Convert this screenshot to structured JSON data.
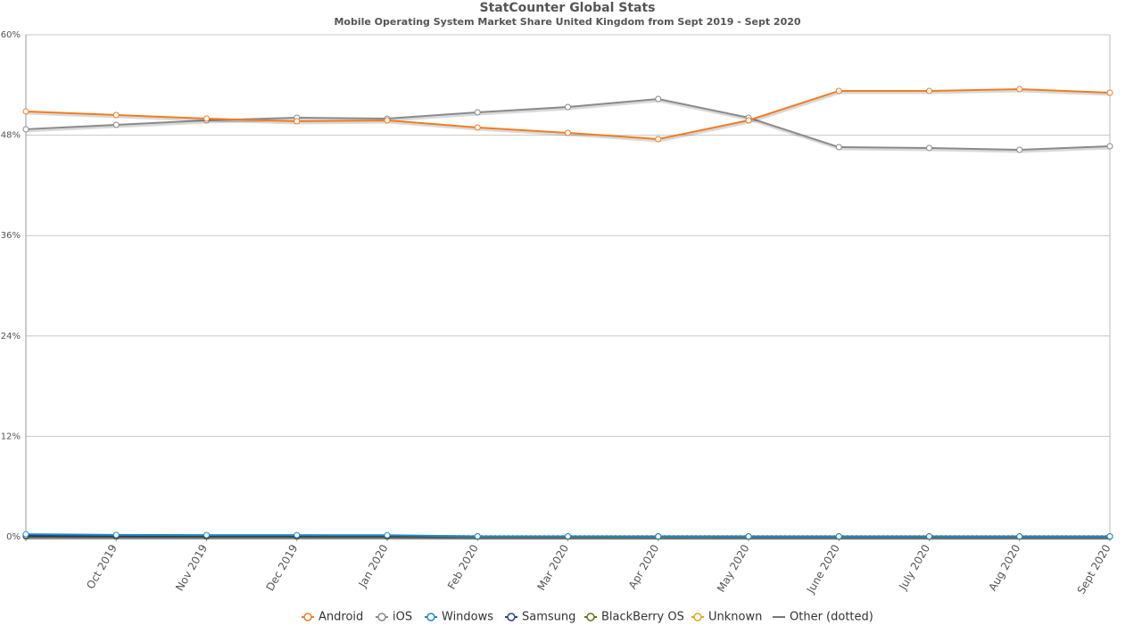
{
  "chart_data": {
    "type": "line",
    "title": "StatCounter Global Stats",
    "subtitle": "Mobile Operating System Market Share United Kingdom from Sept 2019 - Sept 2020",
    "categories": [
      null,
      "Oct 2019",
      "Nov 2019",
      "Dec 2019",
      "Jan 2020",
      "Feb 2020",
      "Mar 2020",
      "Apr 2020",
      "May 2020",
      "June 2020",
      "July 2020",
      "Aug 2020",
      "Sept 2020"
    ],
    "ylim": [
      0,
      60
    ],
    "yticks": [
      {
        "value": 0,
        "label": "0%"
      },
      {
        "value": 12,
        "label": "12%"
      },
      {
        "value": 24,
        "label": "24%"
      },
      {
        "value": 36,
        "label": "36%"
      },
      {
        "value": 48,
        "label": "48%"
      },
      {
        "value": 60,
        "label": "60%"
      }
    ],
    "grid": true,
    "legend": "bottom",
    "series": [
      {
        "name": "Android",
        "color": "#f47b20",
        "values": [
          50.84,
          50.41,
          49.98,
          49.66,
          49.77,
          48.92,
          48.28,
          47.53,
          49.77,
          53.29,
          53.29,
          53.5,
          53.07
        ]
      },
      {
        "name": "iOS",
        "color": "#8a8a8a",
        "values": [
          48.71,
          49.24,
          49.77,
          50.09,
          49.98,
          50.73,
          51.37,
          52.33,
          50.09,
          46.57,
          46.47,
          46.25,
          46.68
        ]
      },
      {
        "name": "Windows",
        "color": "#1f88c9",
        "values": [
          0.3,
          0.22,
          0.2,
          0.2,
          0.18,
          0.05,
          0.05,
          0.04,
          0.04,
          0.04,
          0.04,
          0.04,
          0.04
        ]
      },
      {
        "name": "Samsung",
        "color": "#2c3f8f",
        "values": [
          0.12,
          0.1,
          0.1,
          0.1,
          0.1,
          0.05,
          0.05,
          0.05,
          0.04,
          0.04,
          0.04,
          0.04,
          0.04
        ]
      },
      {
        "name": "BlackBerry OS",
        "color": "#5a7a12",
        "values": [
          0.02,
          0.02,
          0.02,
          0.02,
          0.02,
          0.01,
          0.01,
          0.01,
          0.01,
          0.01,
          0.01,
          0.01,
          0.01
        ]
      },
      {
        "name": "Unknown",
        "color": "#e0a818",
        "values": [
          0.05,
          0.05,
          0.05,
          0.05,
          0.05,
          0.05,
          0.05,
          0.05,
          0.05,
          0.05,
          0.05,
          0.05,
          0.05
        ]
      },
      {
        "name": "Other (dotted)",
        "color": "#777777",
        "style": "dotted",
        "values": [
          0.08,
          0.08,
          0.08,
          0.08,
          0.08,
          0.08,
          0.08,
          0.08,
          0.08,
          0.08,
          0.08,
          0.08,
          0.08
        ]
      }
    ]
  }
}
